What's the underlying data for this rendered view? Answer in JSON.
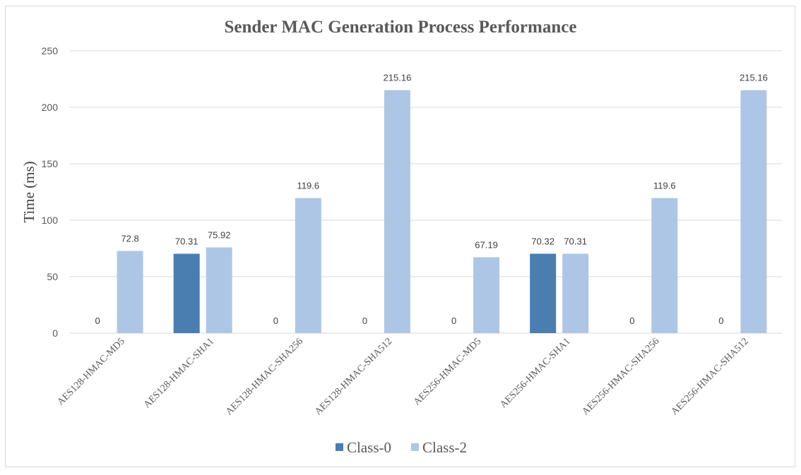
{
  "chart_data": {
    "type": "bar",
    "title": "Sender MAC Generation Process Performance",
    "xlabel": "",
    "ylabel": "Time (ms)",
    "ylim": [
      0,
      250
    ],
    "yticks": [
      0,
      50,
      100,
      150,
      200,
      250
    ],
    "grid": true,
    "legend_position": "bottom",
    "categories": [
      "AES128-HMAC-MD5",
      "AES128-HMAC-SHA1",
      "AES128-HMAC-SHA256",
      "AES128-HMAC-SHA512",
      "AES256-HMAC-MD5",
      "AES256-HMAC-SHA1",
      "AES256-HMAC-SHA256",
      "AES256-HMAC-SHA512"
    ],
    "series": [
      {
        "name": "Class-0",
        "color": "#4a7eb1",
        "values": [
          0,
          70.31,
          0,
          0,
          0,
          70.32,
          0,
          0
        ]
      },
      {
        "name": "Class-2",
        "color": "#aec6e6",
        "values": [
          72.8,
          75.92,
          119.6,
          215.16,
          67.19,
          70.31,
          119.6,
          215.16
        ]
      }
    ]
  }
}
